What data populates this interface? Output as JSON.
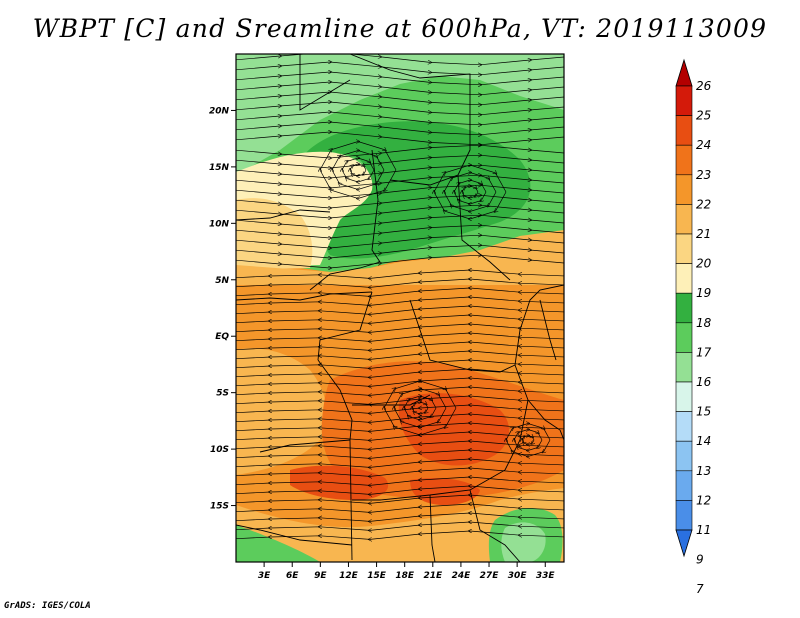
{
  "title": "WBPT [C] and Sreamline at 600hPa, VT: 2019113009",
  "credit": "GrADS: IGES/COLA",
  "map": {
    "lon_range": [
      0,
      35
    ],
    "lat_range": [
      -20,
      25
    ],
    "lon_ticks": [
      "3E",
      "6E",
      "9E",
      "12E",
      "15E",
      "18E",
      "21E",
      "24E",
      "27E",
      "30E",
      "33E"
    ],
    "lat_ticks": [
      "20N",
      "15N",
      "10N",
      "5N",
      "EQ",
      "5S",
      "10S",
      "15S"
    ]
  },
  "colorbar": {
    "levels": [
      "26",
      "25",
      "24",
      "23",
      "22",
      "21",
      "20",
      "19",
      "18",
      "17",
      "16",
      "15",
      "14",
      "13",
      "12",
      "11",
      "9",
      "7"
    ],
    "colors": [
      "#b30000",
      "#d41a0a",
      "#e84e12",
      "#f0731a",
      "#f4962a",
      "#f8b650",
      "#fbd682",
      "#fef0b8",
      "#33b040",
      "#5ccc5c",
      "#94e094",
      "#d8f5ea",
      "#b4dcf8",
      "#8cc4f2",
      "#6aaaee",
      "#4a8ee8",
      "#2a70e0"
    ]
  },
  "field_colors": {
    "green_dark": "#33b040",
    "green_mid": "#5ccc5c",
    "green_light": "#94e094",
    "cream": "#fef0b8",
    "yellow": "#fbd682",
    "orange_light": "#f8b650",
    "orange": "#f4962a",
    "orange_dark": "#f0731a",
    "red": "#e84e12"
  }
}
